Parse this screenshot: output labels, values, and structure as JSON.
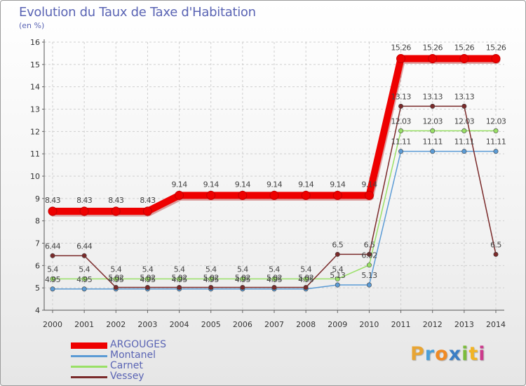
{
  "chart_data": {
    "type": "line",
    "title": "Evolution du Taux de Taxe d'Habitation",
    "subtitle": "(en %)",
    "xlabel": "",
    "ylabel": "",
    "x": [
      "2000",
      "2001",
      "2002",
      "2003",
      "2004",
      "2005",
      "2006",
      "2007",
      "2008",
      "2009",
      "2010",
      "2011",
      "2012",
      "2013",
      "2014"
    ],
    "ylim": [
      4,
      16
    ],
    "yticks": [
      "4",
      "5",
      "6",
      "7",
      "8",
      "9",
      "10",
      "11",
      "12",
      "13",
      "14",
      "15",
      "16"
    ],
    "grid": true,
    "legend_position": "bottom-left",
    "series": [
      {
        "name": "ARGOUGES",
        "color": "#ee0000",
        "values": [
          8.43,
          8.43,
          8.43,
          8.43,
          9.14,
          9.14,
          9.14,
          9.14,
          9.14,
          9.14,
          9.14,
          15.26,
          15.26,
          15.26,
          15.26
        ],
        "labels": [
          "8.43",
          "8.43",
          "8.43",
          "8.43",
          "9.14",
          "9.14",
          "9.14",
          "9.14",
          "9.14",
          "9.14",
          "9.14",
          "15.26",
          "15.26",
          "15.26",
          "15.26"
        ]
      },
      {
        "name": "Montanel",
        "color": "#5b9bd5",
        "values": [
          4.95,
          4.95,
          4.95,
          4.95,
          4.95,
          4.95,
          4.95,
          4.95,
          4.95,
          5.13,
          5.13,
          11.11,
          11.11,
          11.11,
          11.11
        ],
        "labels": [
          "4.95",
          "4.95",
          "4.95",
          "4.95",
          "4.95",
          "4.95",
          "4.95",
          "4.95",
          "4.95",
          "5.13",
          "5.13",
          "11.11",
          "11.11",
          "11.11",
          "11.11"
        ]
      },
      {
        "name": "Carnet",
        "color": "#99e066",
        "values": [
          5.4,
          5.4,
          5.4,
          5.4,
          5.4,
          5.4,
          5.4,
          5.4,
          5.4,
          5.4,
          6.02,
          12.03,
          12.03,
          12.03,
          12.03
        ],
        "labels": [
          "5.4",
          "5.4",
          "5.4",
          "5.4",
          "5.4",
          "5.4",
          "5.4",
          "5.4",
          "5.4",
          "5.4",
          "6.02",
          "12.03",
          "12.03",
          "12.03",
          "12.03"
        ]
      },
      {
        "name": "Vessey",
        "color": "#7a2a2a",
        "values": [
          6.44,
          6.44,
          5.02,
          5.02,
          5.02,
          5.02,
          5.02,
          5.02,
          5.02,
          6.5,
          6.5,
          13.13,
          13.13,
          13.13,
          6.5
        ],
        "labels": [
          "6.44",
          "6.44",
          "5.02",
          "5.02",
          "5.02",
          "5.02",
          "5.02",
          "5.02",
          "5.02",
          "6.5",
          "6.5",
          "13.13",
          "13.13",
          "13.13",
          "6.5"
        ]
      }
    ]
  },
  "brand": {
    "letters": [
      "P",
      "r",
      "o",
      "x",
      "i",
      "t",
      "i"
    ],
    "colors": [
      "#e8a534",
      "#4a9fd8",
      "#f08a24",
      "#3b7dc4",
      "#7cbc3c",
      "#f2b424",
      "#cc3b8c"
    ]
  }
}
